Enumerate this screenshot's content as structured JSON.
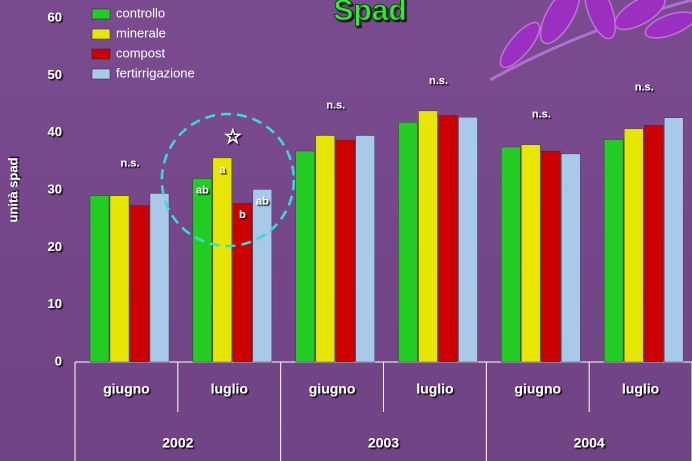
{
  "chart_data": {
    "type": "bar",
    "title": "Spad",
    "y_label": "unità spad",
    "categories": [
      "giugno",
      "luglio",
      "giugno",
      "luglio",
      "giugno",
      "luglio"
    ],
    "year_groups": [
      "2002",
      "2003",
      "2004"
    ],
    "group_annotations": [
      "n.s.",
      "☆",
      "n.s.",
      "n.s.",
      "n.s.",
      "n.s."
    ],
    "series": [
      {
        "name": "controllo",
        "color": "#22cc22",
        "values": [
          29.0,
          32.0,
          36.8,
          41.8,
          37.5,
          38.8
        ],
        "letters": [
          null,
          "ab",
          null,
          null,
          null,
          null
        ]
      },
      {
        "name": "minerale",
        "color": "#e6e600",
        "values": [
          29.0,
          35.6,
          39.5,
          43.8,
          37.9,
          40.7
        ],
        "letters": [
          null,
          "a",
          null,
          null,
          null,
          null
        ]
      },
      {
        "name": "compost",
        "color": "#cc0000",
        "values": [
          27.3,
          27.7,
          38.7,
          43.0,
          36.8,
          41.3
        ],
        "letters": [
          null,
          "b",
          null,
          null,
          null,
          null
        ]
      },
      {
        "name": "fertirrigazione",
        "color": "#a9c9ea",
        "values": [
          29.4,
          30.1,
          39.5,
          42.7,
          36.3,
          42.6
        ],
        "letters": [
          null,
          "ab",
          null,
          null,
          null,
          null
        ]
      }
    ],
    "ylim": [
      0,
      60
    ],
    "yticks": [
      0,
      10,
      20,
      30,
      40,
      50,
      60
    ],
    "legend": "top-left"
  }
}
